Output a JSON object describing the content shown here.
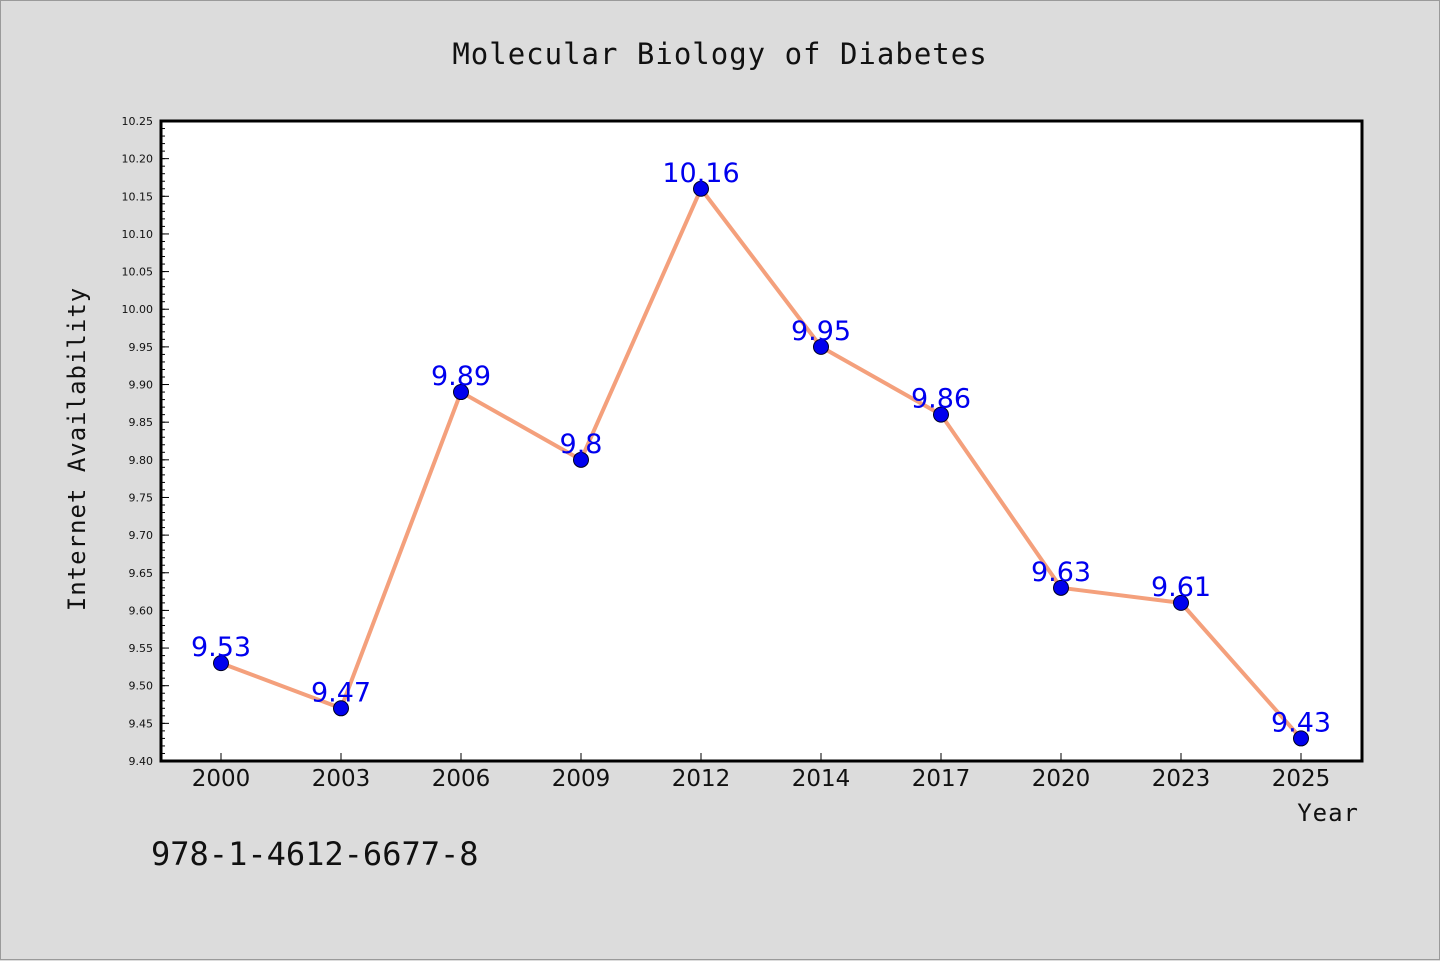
{
  "chart_data": {
    "type": "line",
    "title": "Molecular Biology of Diabetes",
    "xlabel": "Year",
    "ylabel": "Internet Availability",
    "categories": [
      "2000",
      "2003",
      "2006",
      "2009",
      "2012",
      "2014",
      "2017",
      "2020",
      "2023",
      "2025"
    ],
    "series": [
      {
        "values": [
          9.53,
          9.47,
          9.89,
          9.8,
          10.16,
          9.95,
          9.86,
          9.63,
          9.61,
          9.43
        ],
        "data_labels": [
          "9.53",
          "9.47",
          "9.89",
          "9.8",
          "10.16",
          "9.95",
          "9.86",
          "9.63",
          "9.61",
          "9.43"
        ],
        "line_color": "#f4a07c",
        "marker_color": "#0000ee"
      }
    ],
    "ylim": [
      9.4,
      10.25
    ],
    "yticks": [
      "9.40",
      "9.45",
      "9.50",
      "9.55",
      "9.60",
      "9.65",
      "9.70",
      "9.75",
      "9.80",
      "9.85",
      "9.90",
      "9.95",
      "10.00",
      "10.05",
      "10.10",
      "10.15",
      "10.20",
      "10.25"
    ],
    "grid": false,
    "legend": false
  },
  "footer": {
    "isbn": "978-1-4612-6677-8"
  },
  "colors": {
    "background": "#dcdcdc",
    "plot_background": "#ffffff",
    "label_color": "#0000ee"
  }
}
